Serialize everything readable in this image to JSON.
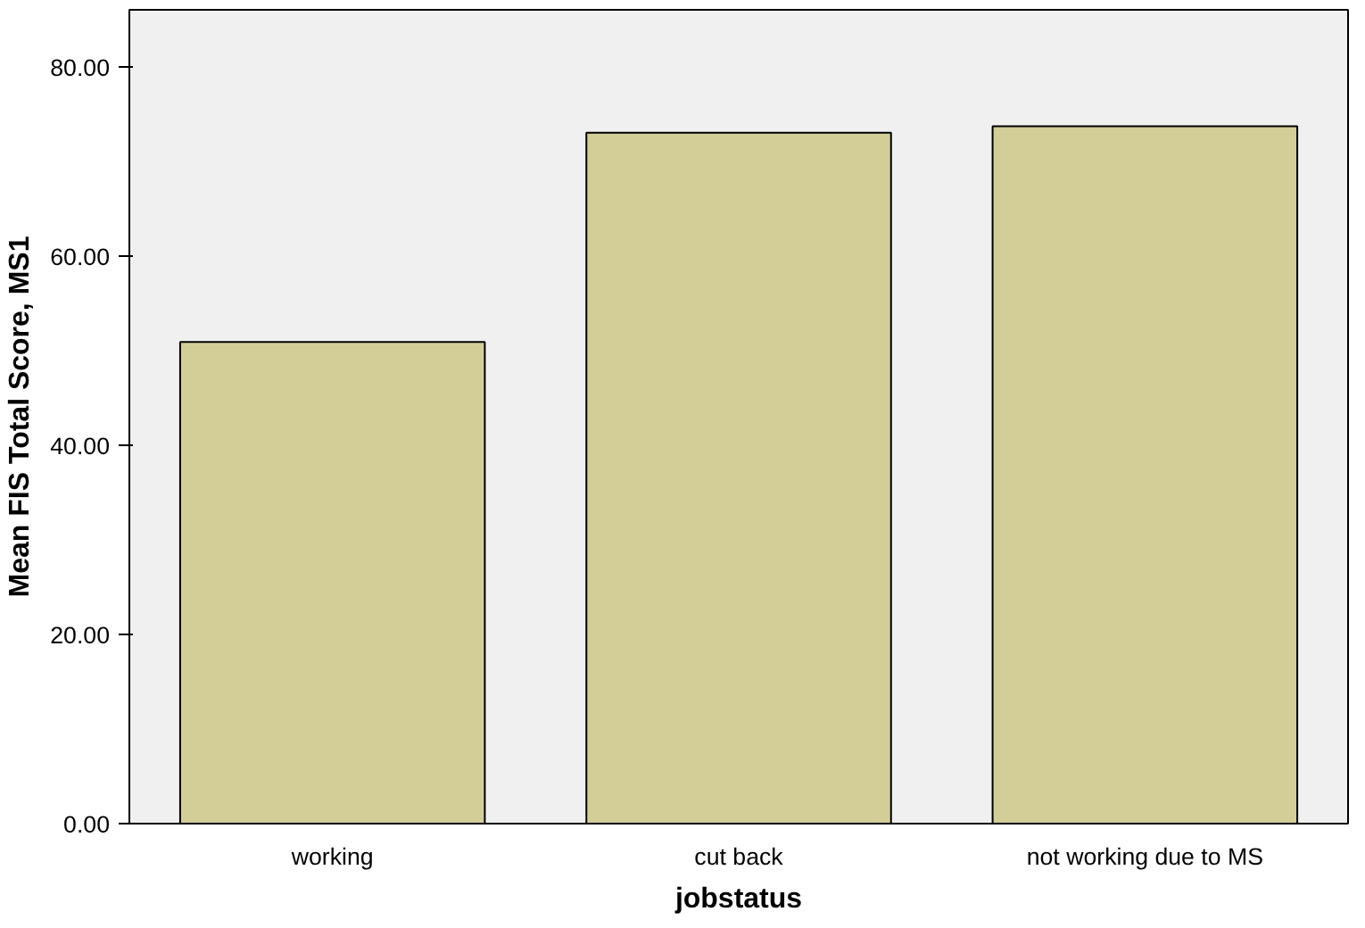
{
  "chart_data": {
    "type": "bar",
    "xlabel": "jobstatus",
    "ylabel": "Mean FIS Total Score, MS1",
    "categories": [
      "working",
      "cut back",
      "not working due to MS"
    ],
    "values": [
      50.9,
      73.0,
      73.7
    ],
    "color": "#d3ce98",
    "ylim": [
      0,
      86
    ],
    "yticks": [
      {
        "value": 0,
        "label": "0.00"
      },
      {
        "value": 20,
        "label": "20.00"
      },
      {
        "value": 40,
        "label": "40.00"
      },
      {
        "value": 60,
        "label": "60.00"
      },
      {
        "value": 80,
        "label": "80.00"
      }
    ],
    "grid": false
  }
}
